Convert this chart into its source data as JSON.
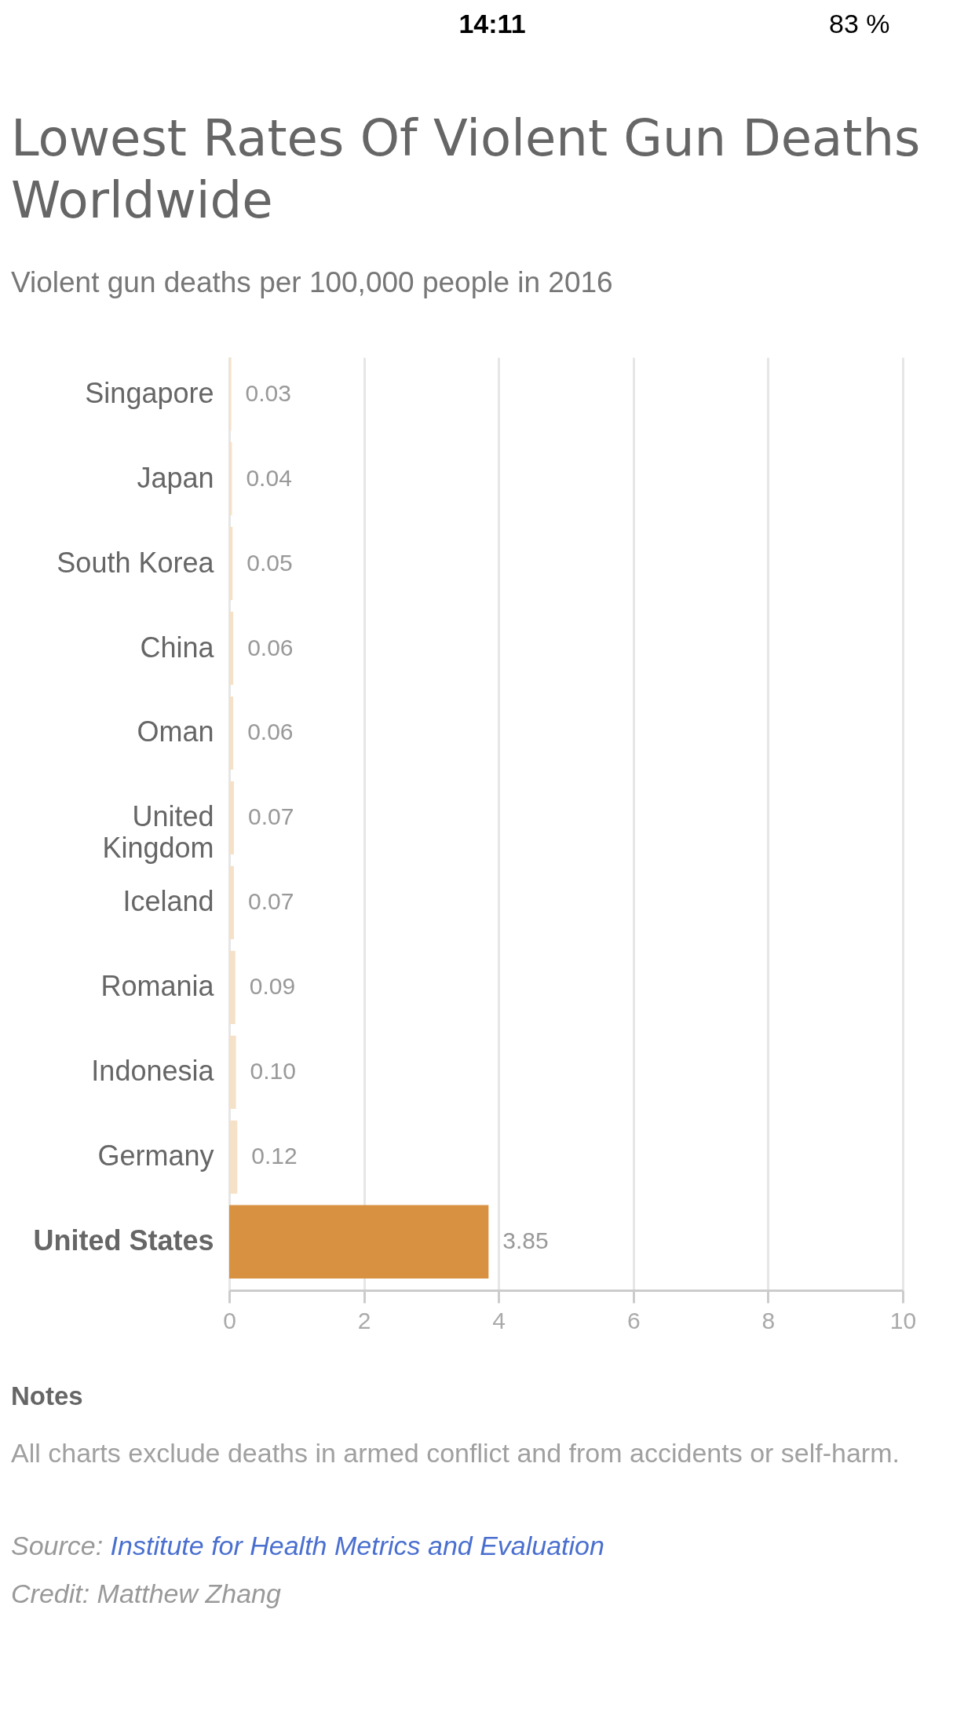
{
  "chart_data": {
    "type": "bar",
    "orientation": "horizontal",
    "title": "Lowest Rates Of Violent Gun Deaths Worldwide",
    "subtitle": "Violent gun deaths per 100,000 people in 2016",
    "categories": [
      "Singapore",
      "Japan",
      "South Korea",
      "China",
      "Oman",
      "United Kingdom",
      "Iceland",
      "Romania",
      "Indonesia",
      "Germany",
      "United States"
    ],
    "values": [
      0.03,
      0.04,
      0.05,
      0.06,
      0.06,
      0.07,
      0.07,
      0.09,
      0.1,
      0.12,
      3.85
    ],
    "value_labels": [
      "0.03",
      "0.04",
      "0.05",
      "0.06",
      "0.06",
      "0.07",
      "0.07",
      "0.09",
      "0.10",
      "0.12",
      "3.85"
    ],
    "colors": [
      "#f5e1c8",
      "#f5e1c8",
      "#f5e1c8",
      "#f5e1c8",
      "#f5e1c8",
      "#f5e1c8",
      "#f5e1c8",
      "#f5e1c8",
      "#f5e1c8",
      "#f5e1c8",
      "#d79140"
    ],
    "xlim": [
      0,
      10
    ],
    "xticks": [
      0,
      2,
      4,
      6,
      8,
      10
    ],
    "grid": "x",
    "annotations": [
      "14:11",
      "83 %",
      "Notes",
      "All charts exclude deaths in armed conflict and from accidents or self-harm.",
      "Source: Institute for Health Metrics and Evaluation",
      "Credit: Matthew Zhang"
    ]
  }
}
